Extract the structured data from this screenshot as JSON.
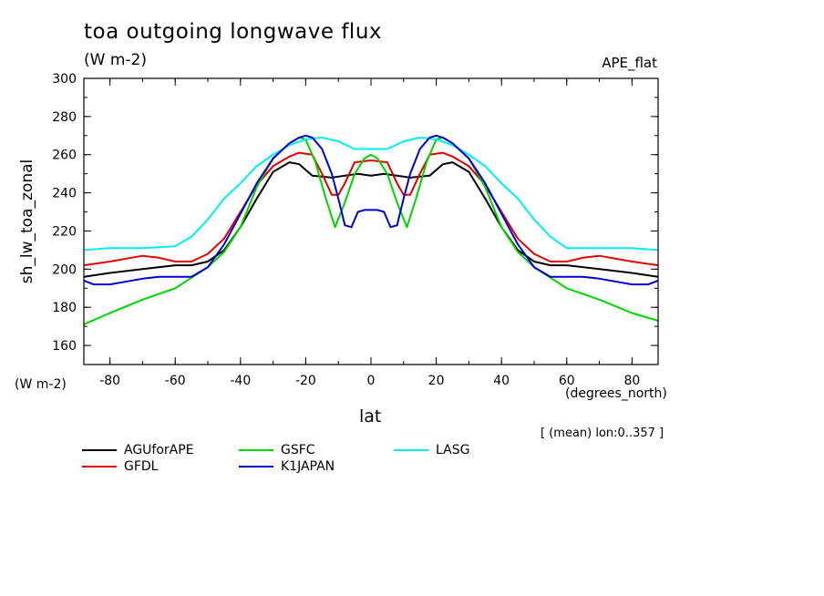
{
  "chart_data": {
    "type": "line",
    "title": "toa outgoing longwave flux",
    "units": "(W m-2)",
    "experiment": "APE_flat",
    "ylabel": "sh_lw_toa_zonal",
    "yunit": "(W m-2)",
    "xlabel": "lat",
    "xunit": "(degrees_north)",
    "note": "[ (mean) lon:0..357 ]",
    "xlim": [
      -88,
      88
    ],
    "ylim": [
      150,
      300
    ],
    "xticks": [
      -80,
      -60,
      -40,
      -20,
      0,
      20,
      40,
      60,
      80
    ],
    "yticks": [
      160,
      180,
      200,
      220,
      240,
      260,
      280,
      300
    ],
    "series": [
      {
        "name": "AGUforAPE",
        "color": "#000000",
        "x": [
          -88,
          -80,
          -70,
          -60,
          -55,
          -50,
          -45,
          -40,
          -35,
          -30,
          -25,
          -22,
          -18,
          -12,
          -8,
          -4,
          0,
          4,
          8,
          12,
          18,
          22,
          25,
          30,
          35,
          40,
          45,
          50,
          55,
          60,
          70,
          80,
          88
        ],
        "y": [
          196,
          198,
          200,
          202,
          202,
          204,
          210,
          222,
          237,
          251,
          256,
          255,
          249,
          248,
          249,
          250,
          249,
          250,
          249,
          248,
          249,
          255,
          256,
          251,
          237,
          222,
          210,
          204,
          202,
          202,
          200,
          198,
          196
        ]
      },
      {
        "name": "GFDL",
        "color": "#e00000",
        "x": [
          -90,
          -88,
          -80,
          -70,
          -65,
          -60,
          -55,
          -50,
          -45,
          -40,
          -35,
          -30,
          -25,
          -22,
          -18,
          -15,
          -12,
          -10,
          -8,
          -5,
          0,
          5,
          8,
          10,
          12,
          15,
          18,
          22,
          25,
          30,
          35,
          40,
          45,
          50,
          55,
          60,
          65,
          70,
          80,
          88,
          90
        ],
        "y": [
          205,
          202,
          204,
          207,
          206,
          204,
          204,
          208,
          216,
          230,
          244,
          254,
          259,
          261,
          260,
          250,
          239,
          239,
          245,
          256,
          257,
          256,
          245,
          239,
          239,
          250,
          260,
          261,
          259,
          254,
          244,
          230,
          216,
          208,
          204,
          204,
          206,
          207,
          204,
          202,
          205
        ]
      },
      {
        "name": "GSFC",
        "color": "#00d400",
        "x": [
          -88,
          -80,
          -70,
          -60,
          -50,
          -45,
          -40,
          -35,
          -30,
          -25,
          -22,
          -20,
          -17,
          -14,
          -11,
          -8,
          -5,
          -2,
          0,
          2,
          5,
          8,
          11,
          14,
          17,
          20,
          22,
          25,
          30,
          35,
          40,
          45,
          50,
          60,
          70,
          80,
          88
        ],
        "y": [
          171,
          177,
          184,
          190,
          201,
          209,
          222,
          243,
          258,
          266,
          269,
          268,
          256,
          238,
          222,
          235,
          250,
          258,
          260,
          258,
          250,
          235,
          222,
          238,
          256,
          268,
          269,
          266,
          258,
          243,
          222,
          209,
          201,
          190,
          184,
          177,
          173
        ]
      },
      {
        "name": "LASG",
        "color": "#00eeee",
        "x": [
          -88,
          -80,
          -70,
          -60,
          -55,
          -50,
          -45,
          -40,
          -35,
          -30,
          -25,
          -20,
          -15,
          -10,
          -5,
          0,
          5,
          10,
          15,
          20,
          25,
          30,
          35,
          40,
          45,
          50,
          55,
          60,
          70,
          80,
          88
        ],
        "y": [
          210,
          211,
          211,
          212,
          217,
          226,
          237,
          245,
          254,
          260,
          265,
          268,
          269,
          267,
          263,
          263,
          263,
          267,
          269,
          268,
          265,
          260,
          254,
          245,
          237,
          226,
          217,
          211,
          211,
          211,
          210
        ]
      },
      {
        "name": "K1JAPAN",
        "color": "#0000cc",
        "x": [
          -88,
          -85,
          -80,
          -70,
          -65,
          -60,
          -55,
          -50,
          -45,
          -40,
          -35,
          -30,
          -25,
          -22,
          -20,
          -18,
          -15,
          -12,
          -10,
          -8,
          -6,
          -4,
          -2,
          0,
          2,
          4,
          6,
          8,
          10,
          12,
          15,
          18,
          20,
          22,
          25,
          30,
          35,
          40,
          45,
          50,
          55,
          60,
          65,
          70,
          80,
          85,
          88
        ],
        "y": [
          194,
          192,
          192,
          195,
          196,
          196,
          196,
          201,
          213,
          229,
          245,
          258,
          266,
          269,
          270,
          269,
          263,
          250,
          237,
          223,
          222,
          230,
          231,
          231,
          231,
          230,
          222,
          223,
          237,
          250,
          263,
          269,
          270,
          269,
          266,
          258,
          245,
          229,
          213,
          201,
          196,
          196,
          196,
          195,
          192,
          192,
          194
        ]
      }
    ]
  }
}
